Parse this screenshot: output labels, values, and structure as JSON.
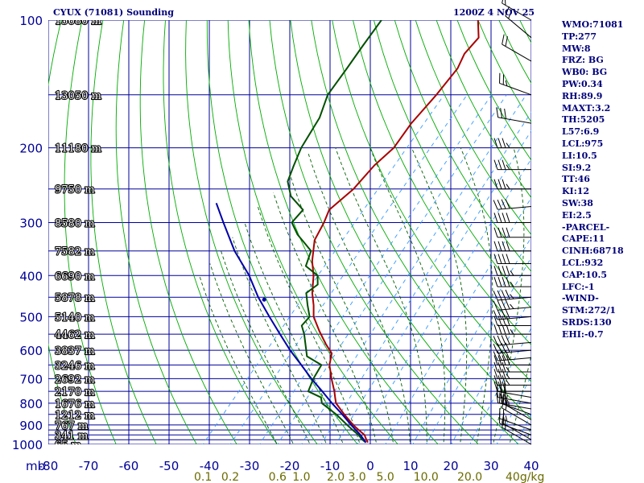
{
  "header": {
    "station": "CYUX (71081) Sounding",
    "time": "1200Z  4 NOV 25"
  },
  "indices": [
    "WMO:71081",
    "TP:277",
    "MW:8",
    "FRZ: BG",
    "WB0: BG",
    "PW:0.34",
    "RH:89.9",
    "MAXT:3.2",
    "TH:5205",
    "L57:6.9",
    "LCL:975",
    "LI:10.5",
    "SI:9.2",
    "TT:46",
    "KI:12",
    "SW:38",
    "EI:2.5",
    "-PARCEL-",
    "CAPE:11",
    "CINH:68718",
    "LCL:932",
    "CAP:10.5",
    "LFC:-1",
    "-WIND-",
    "STM:272/1",
    "SRDS:130",
    "EHI:-0.7"
  ],
  "chart_data": {
    "type": "line",
    "title": "CYUX (71081) Sounding",
    "subtitle": "1200Z  4 NOV 25",
    "diagram": "skew-T log-P",
    "xlabel": "",
    "ylabel": "mb",
    "pressure_unit": "mb",
    "temperature_unit": "°C",
    "mixing_ratio_unit": "g/kg",
    "p_range": [
      1000,
      100
    ],
    "t_range": [
      -80,
      40
    ],
    "p_ticks": [
      100,
      200,
      300,
      400,
      500,
      600,
      700,
      800,
      900,
      1000
    ],
    "p_tick_labels": [
      "100",
      "200",
      "300",
      "400",
      "500",
      "600",
      "700",
      "800",
      "900",
      "1000"
    ],
    "p_lines": [
      100,
      150,
      200,
      250,
      300,
      350,
      400,
      450,
      500,
      550,
      600,
      650,
      700,
      750,
      800,
      850,
      900,
      925,
      950,
      975,
      1000
    ],
    "t_ticks": [
      -80,
      -70,
      -60,
      -50,
      -40,
      -30,
      -20,
      -10,
      0,
      10,
      20,
      30,
      40
    ],
    "t_tick_labels": [
      "-80",
      "-70",
      "-60",
      "-50",
      "-40",
      "-30",
      "-20",
      "-10",
      "0",
      "10",
      "20",
      "30",
      "40"
    ],
    "mixing_ratio_labels": [
      {
        "w": 0.1,
        "label": "0.1"
      },
      {
        "w": 0.2,
        "label": "0.2"
      },
      {
        "w": 0.6,
        "label": "0.6"
      },
      {
        "w": 1.0,
        "label": "1.0"
      },
      {
        "w": 2.0,
        "label": "2.0"
      },
      {
        "w": 3.0,
        "label": "3.0"
      },
      {
        "w": 5.0,
        "label": "5.0"
      },
      {
        "w": 10.0,
        "label": "10.0"
      },
      {
        "w": 20.0,
        "label": "20.0"
      },
      {
        "w": 40.0,
        "label": "40g/kg"
      }
    ],
    "heights": [
      {
        "p": 100,
        "label": "15680 m"
      },
      {
        "p": 150,
        "label": "13050 m"
      },
      {
        "p": 200,
        "label": "11180 m"
      },
      {
        "p": 250,
        "label": "9750 m"
      },
      {
        "p": 300,
        "label": "8580 m"
      },
      {
        "p": 350,
        "label": "7582 m"
      },
      {
        "p": 400,
        "label": "6690 m"
      },
      {
        "p": 450,
        "label": "5878 m"
      },
      {
        "p": 500,
        "label": "5140 m"
      },
      {
        "p": 550,
        "label": "4462 m"
      },
      {
        "p": 600,
        "label": "3837 m"
      },
      {
        "p": 650,
        "label": "3246 m"
      },
      {
        "p": 700,
        "label": "2692 m"
      },
      {
        "p": 750,
        "label": "2170 m"
      },
      {
        "p": 800,
        "label": "1676 m"
      },
      {
        "p": 850,
        "label": "1212 m"
      },
      {
        "p": 900,
        "label": "767 m"
      },
      {
        "p": 950,
        "label": "341 m"
      },
      {
        "p": 1000,
        "label": "65 m"
      }
    ],
    "series": [
      {
        "role": "temperature",
        "color": "#aa0000",
        "points": [
          {
            "p": 990,
            "t": -1.0
          },
          {
            "p": 975,
            "t": -2.0
          },
          {
            "p": 950,
            "t": -3.5
          },
          {
            "p": 925,
            "t": -6.0
          },
          {
            "p": 900,
            "t": -8.5
          },
          {
            "p": 850,
            "t": -13.0
          },
          {
            "p": 800,
            "t": -17.5
          },
          {
            "p": 775,
            "t": -19.0
          },
          {
            "p": 750,
            "t": -20.5
          },
          {
            "p": 700,
            "t": -24.0
          },
          {
            "p": 650,
            "t": -27.5
          },
          {
            "p": 610,
            "t": -29.5
          },
          {
            "p": 580,
            "t": -33.0
          },
          {
            "p": 540,
            "t": -37.5
          },
          {
            "p": 500,
            "t": -42.0
          },
          {
            "p": 470,
            "t": -44.5
          },
          {
            "p": 440,
            "t": -47.5
          },
          {
            "p": 400,
            "t": -51.0
          },
          {
            "p": 370,
            "t": -54.5
          },
          {
            "p": 330,
            "t": -58.5
          },
          {
            "p": 300,
            "t": -60.0
          },
          {
            "p": 280,
            "t": -61.5
          },
          {
            "p": 250,
            "t": -60.0
          },
          {
            "p": 220,
            "t": -60.0
          },
          {
            "p": 200,
            "t": -59.0
          },
          {
            "p": 175,
            "t": -60.0
          },
          {
            "p": 150,
            "t": -60.0
          },
          {
            "p": 130,
            "t": -60.5
          },
          {
            "p": 120,
            "t": -62.0
          },
          {
            "p": 110,
            "t": -62.0
          },
          {
            "p": 100,
            "t": -66.0
          }
        ]
      },
      {
        "role": "dewpoint",
        "color": "#005000",
        "points": [
          {
            "p": 990,
            "t": -1.5
          },
          {
            "p": 975,
            "t": -3.0
          },
          {
            "p": 950,
            "t": -5.0
          },
          {
            "p": 925,
            "t": -7.5
          },
          {
            "p": 900,
            "t": -10.0
          },
          {
            "p": 850,
            "t": -15.0
          },
          {
            "p": 800,
            "t": -21.0
          },
          {
            "p": 775,
            "t": -22.5
          },
          {
            "p": 750,
            "t": -27.0
          },
          {
            "p": 700,
            "t": -28.5
          },
          {
            "p": 650,
            "t": -29.5
          },
          {
            "p": 620,
            "t": -35.0
          },
          {
            "p": 600,
            "t": -36.5
          },
          {
            "p": 550,
            "t": -40.5
          },
          {
            "p": 525,
            "t": -43.0
          },
          {
            "p": 500,
            "t": -43.0
          },
          {
            "p": 470,
            "t": -46.0
          },
          {
            "p": 440,
            "t": -49.0
          },
          {
            "p": 420,
            "t": -48.0
          },
          {
            "p": 400,
            "t": -50.0
          },
          {
            "p": 380,
            "t": -55.0
          },
          {
            "p": 350,
            "t": -57.0
          },
          {
            "p": 320,
            "t": -64.0
          },
          {
            "p": 300,
            "t": -68.0
          },
          {
            "p": 280,
            "t": -68.0
          },
          {
            "p": 260,
            "t": -74.0
          },
          {
            "p": 240,
            "t": -78.0
          },
          {
            "p": 220,
            "t": -80.0
          },
          {
            "p": 200,
            "t": -82.0
          },
          {
            "p": 170,
            "t": -84.0
          },
          {
            "p": 150,
            "t": -87.0
          },
          {
            "p": 130,
            "t": -88.0
          },
          {
            "p": 115,
            "t": -89.0
          },
          {
            "p": 100,
            "t": -90.0
          }
        ]
      },
      {
        "role": "parcel",
        "color": "#0000aa",
        "points": [
          {
            "p": 990,
            "t": -1.5
          },
          {
            "p": 950,
            "t": -4.5
          },
          {
            "p": 900,
            "t": -9.0
          },
          {
            "p": 850,
            "t": -13.5
          },
          {
            "p": 800,
            "t": -18.5
          },
          {
            "p": 750,
            "t": -23.5
          },
          {
            "p": 700,
            "t": -29.0
          },
          {
            "p": 650,
            "t": -34.5
          },
          {
            "p": 600,
            "t": -40.5
          },
          {
            "p": 550,
            "t": -46.5
          },
          {
            "p": 500,
            "t": -53.0
          },
          {
            "p": 450,
            "t": -60.0
          },
          {
            "p": 400,
            "t": -67.0
          },
          {
            "p": 350,
            "t": -76.0
          },
          {
            "p": 300,
            "t": -85.0
          },
          {
            "p": 270,
            "t": -91.0
          }
        ]
      }
    ],
    "parcel_marker": {
      "p": 456,
      "t": -58.0
    },
    "winds": [
      {
        "p": 1000,
        "dir": 300,
        "kt": 15
      },
      {
        "p": 975,
        "dir": 300,
        "kt": 15
      },
      {
        "p": 950,
        "dir": 290,
        "kt": 20
      },
      {
        "p": 925,
        "dir": 290,
        "kt": 25
      },
      {
        "p": 900,
        "dir": 300,
        "kt": 20
      },
      {
        "p": 875,
        "dir": 300,
        "kt": 25
      },
      {
        "p": 850,
        "dir": 290,
        "kt": 25
      },
      {
        "p": 825,
        "dir": 280,
        "kt": 30
      },
      {
        "p": 800,
        "dir": 280,
        "kt": 30
      },
      {
        "p": 775,
        "dir": 280,
        "kt": 30
      },
      {
        "p": 750,
        "dir": 270,
        "kt": 30
      },
      {
        "p": 725,
        "dir": 270,
        "kt": 35
      },
      {
        "p": 700,
        "dir": 270,
        "kt": 35
      },
      {
        "p": 675,
        "dir": 270,
        "kt": 35
      },
      {
        "p": 650,
        "dir": 270,
        "kt": 40
      },
      {
        "p": 625,
        "dir": 265,
        "kt": 40
      },
      {
        "p": 600,
        "dir": 265,
        "kt": 40
      },
      {
        "p": 575,
        "dir": 265,
        "kt": 40
      },
      {
        "p": 550,
        "dir": 270,
        "kt": 45
      },
      {
        "p": 525,
        "dir": 270,
        "kt": 40
      },
      {
        "p": 500,
        "dir": 265,
        "kt": 40
      },
      {
        "p": 475,
        "dir": 265,
        "kt": 45
      },
      {
        "p": 450,
        "dir": 265,
        "kt": 45
      },
      {
        "p": 425,
        "dir": 270,
        "kt": 45
      },
      {
        "p": 400,
        "dir": 270,
        "kt": 45
      },
      {
        "p": 375,
        "dir": 270,
        "kt": 40
      },
      {
        "p": 350,
        "dir": 270,
        "kt": 40
      },
      {
        "p": 325,
        "dir": 270,
        "kt": 40
      },
      {
        "p": 300,
        "dir": 270,
        "kt": 40
      },
      {
        "p": 275,
        "dir": 265,
        "kt": 40
      },
      {
        "p": 250,
        "dir": 270,
        "kt": 35
      },
      {
        "p": 225,
        "dir": 270,
        "kt": 35
      },
      {
        "p": 200,
        "dir": 270,
        "kt": 35
      },
      {
        "p": 175,
        "dir": 280,
        "kt": 30
      },
      {
        "p": 150,
        "dir": 290,
        "kt": 25
      },
      {
        "p": 125,
        "dir": 300,
        "kt": 20
      },
      {
        "p": 110,
        "dir": 310,
        "kt": 20
      },
      {
        "p": 100,
        "dir": 300,
        "kt": 15
      }
    ],
    "colors": {
      "grid": "#000099",
      "dry_adiabat": "#00aa00",
      "moist_adiabat": "#006000",
      "mixing_ratio": "#3399ff",
      "axis_text": "#000099",
      "mixing_ratio_text": "#6b6b00",
      "height_text": "#ffffff"
    }
  }
}
